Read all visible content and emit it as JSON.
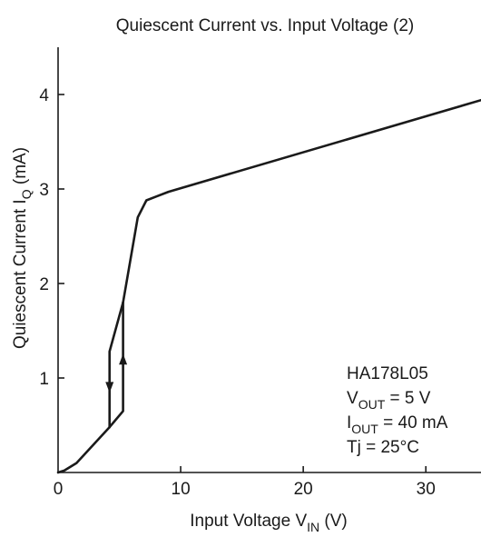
{
  "chart_data": {
    "type": "line",
    "title": "Quiescent Current vs. Input Voltage (2)",
    "xlabel": {
      "main": "Input Voltage  V",
      "subscript": "IN",
      "unit": "  (V)"
    },
    "ylabel": {
      "main": "Quiescent Current  I",
      "subscript": "Q",
      "unit": "  (mA)"
    },
    "xlim": [
      0,
      34.5
    ],
    "ylim": [
      0,
      4.5
    ],
    "xticks": [
      0,
      10,
      20,
      30
    ],
    "yticks": [
      1,
      2,
      3,
      4
    ],
    "series": [
      {
        "x": [
          0,
          0.5,
          1.5,
          4.2
        ],
        "y": [
          0,
          0.02,
          0.1,
          0.48
        ]
      },
      {
        "x": [
          4.2,
          5.3,
          5.3
        ],
        "y": [
          0.48,
          0.65,
          1.8
        ]
      },
      {
        "x": [
          4.2,
          4.2,
          5.3
        ],
        "y": [
          0.48,
          1.28,
          1.8
        ]
      },
      {
        "x": [
          5.3,
          6.5,
          7.2,
          8.0,
          9.0,
          34.5
        ],
        "y": [
          1.8,
          2.7,
          2.88,
          2.92,
          2.97,
          3.94
        ]
      }
    ],
    "arrows": [
      {
        "x": 4.2,
        "y": 0.9,
        "direction": "down"
      },
      {
        "x": 5.3,
        "y": 1.2,
        "direction": "up"
      }
    ],
    "annotations": {
      "part": "HA178L05",
      "vout": {
        "main": "V",
        "subscript": "OUT",
        "rest": " = 5 V"
      },
      "iout": {
        "main": "I",
        "subscript": "OUT",
        "rest": " = 40 mA"
      },
      "tj": "Tj = 25°C"
    },
    "grid": false
  }
}
